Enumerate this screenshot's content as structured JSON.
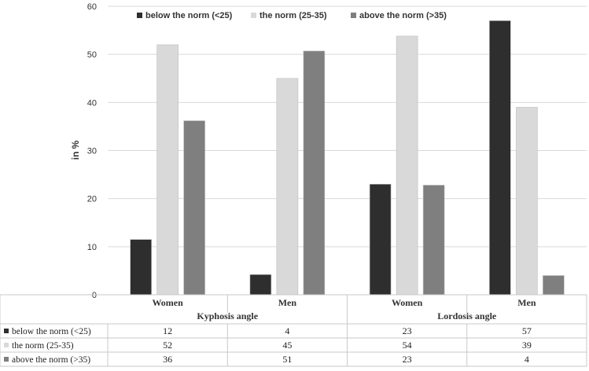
{
  "chart_data": {
    "type": "bar",
    "ylabel": "in %",
    "ylim": [
      0,
      60
    ],
    "yticks": [
      "0",
      "10",
      "20",
      "30",
      "40",
      "50",
      "60"
    ],
    "grid": true,
    "legend_position": "top",
    "groups": [
      {
        "label": "Kyphosis angle",
        "categories": [
          "Women",
          "Men"
        ]
      },
      {
        "label": "Lordosis angle",
        "categories": [
          "Women",
          "Men"
        ]
      }
    ],
    "categories": [
      "Women",
      "Men",
      "Women",
      "Men"
    ],
    "series": [
      {
        "name": "below the norm (<25)",
        "color": "#2e2e2e",
        "values": [
          12,
          4,
          23,
          57
        ],
        "plotted": [
          11.5,
          4.2,
          23.0,
          57.0
        ]
      },
      {
        "name": "the norm (25-35)",
        "color": "#d9d9d9",
        "values": [
          52,
          45,
          54,
          39
        ],
        "plotted": [
          52.0,
          45.0,
          53.8,
          39.0
        ]
      },
      {
        "name": "above the norm (>35)",
        "color": "#7f7f7f",
        "values": [
          36,
          51,
          23,
          4
        ],
        "plotted": [
          36.2,
          50.7,
          22.8,
          4.0
        ]
      }
    ],
    "table_legend_labels": [
      "below the norm (<25)",
      "the norm (25-35)",
      "above the norm (>35)"
    ],
    "table_values": [
      [
        "12",
        "4",
        "23",
        "57"
      ],
      [
        "52",
        "45",
        "54",
        "39"
      ],
      [
        "36",
        "51",
        "23",
        "4"
      ]
    ]
  }
}
